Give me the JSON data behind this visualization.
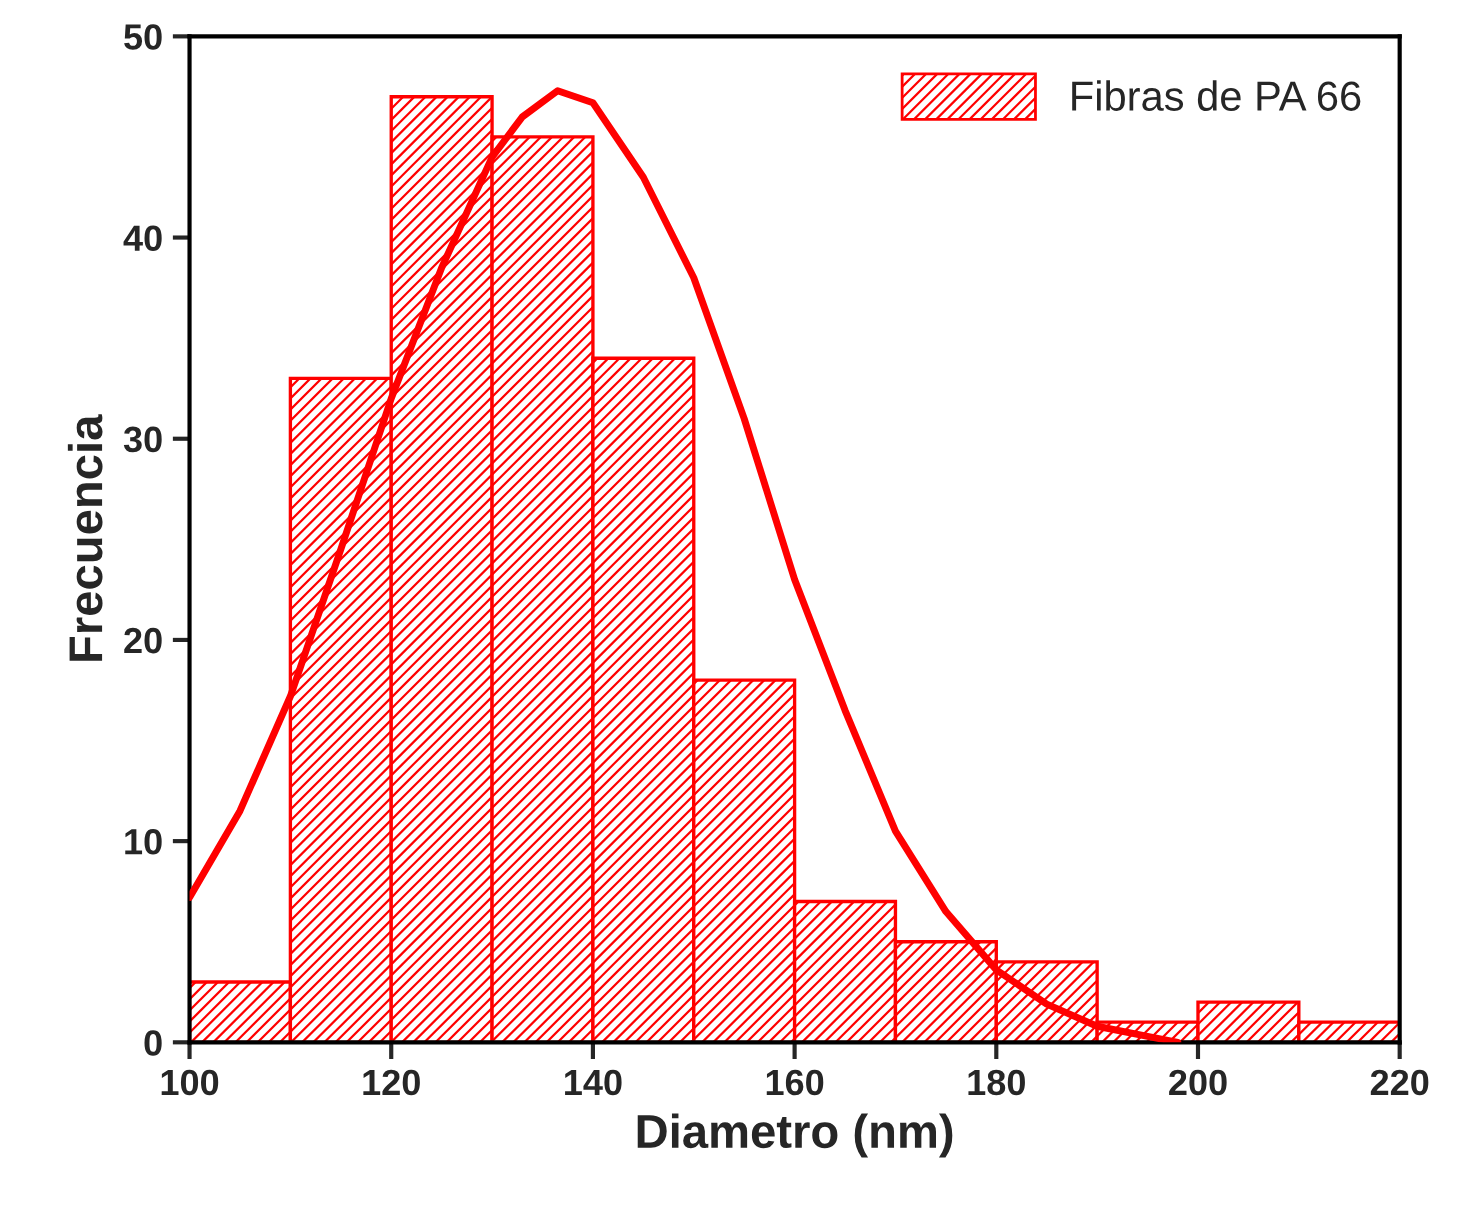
{
  "chart_data": {
    "type": "histogram",
    "xlabel": "Diametro (nm)",
    "ylabel": "Frecuencia",
    "bins": [
      100,
      110,
      120,
      130,
      140,
      150,
      160,
      170,
      180,
      190,
      200,
      210,
      220
    ],
    "series": [
      {
        "name": "Fibras de PA 66",
        "color": "#ff0000",
        "values": [
          3,
          33,
          47,
          45,
          34,
          18,
          7,
          5,
          4,
          1,
          2,
          1
        ]
      },
      {
        "type": "line",
        "color": "#ff0000",
        "x": [
          100,
          105,
          110,
          115,
          120,
          125,
          130,
          133,
          136.5,
          140,
          145,
          150,
          155,
          160,
          165,
          170,
          175,
          180,
          185,
          190,
          195,
          198
        ],
        "values": [
          7.2,
          11.5,
          17.2,
          24.5,
          32,
          38.5,
          44,
          46,
          47.3,
          46.7,
          43,
          38,
          31,
          23,
          16.5,
          10.5,
          6.5,
          3.6,
          1.9,
          0.8,
          0.3,
          0
        ]
      }
    ],
    "xlim": [
      100,
      220
    ],
    "xticks": [
      100,
      120,
      140,
      160,
      180,
      200,
      220
    ],
    "ylim": [
      0,
      50
    ],
    "yticks": [
      0,
      10,
      20,
      30,
      40,
      50
    ],
    "grid": false,
    "legend": "top right"
  }
}
